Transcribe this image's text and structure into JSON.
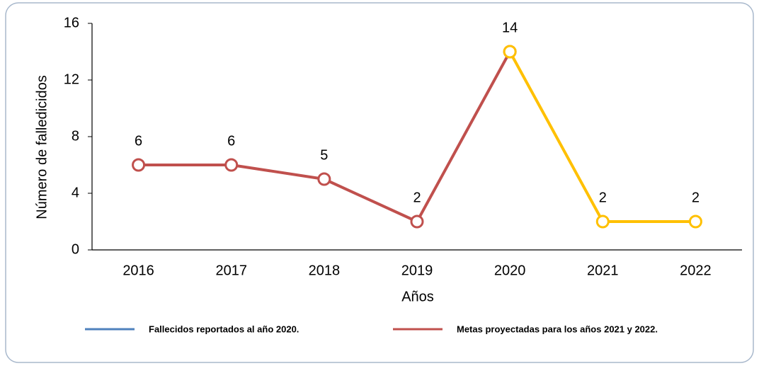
{
  "chart_data": {
    "type": "line",
    "categories": [
      "2016",
      "2017",
      "2018",
      "2019",
      "2020",
      "2021",
      "2022"
    ],
    "x_label": "Años",
    "y_label": "Número de falledicidos",
    "ylim": [
      0,
      16
    ],
    "yticks": [
      0,
      4,
      8,
      12,
      16
    ],
    "series": [
      {
        "name": "Fallecidos reportados al año 2020.",
        "color": "#c0504d",
        "legend_color": "#4f81bd",
        "values": [
          6,
          6,
          5,
          2,
          14,
          null,
          null
        ]
      },
      {
        "name": "Metas proyectadas para los años 2021 y 2022.",
        "color": "#ffc000",
        "legend_color": "#c0504d",
        "values": [
          null,
          null,
          null,
          null,
          14,
          2,
          2
        ]
      }
    ],
    "legend": "bottom"
  }
}
